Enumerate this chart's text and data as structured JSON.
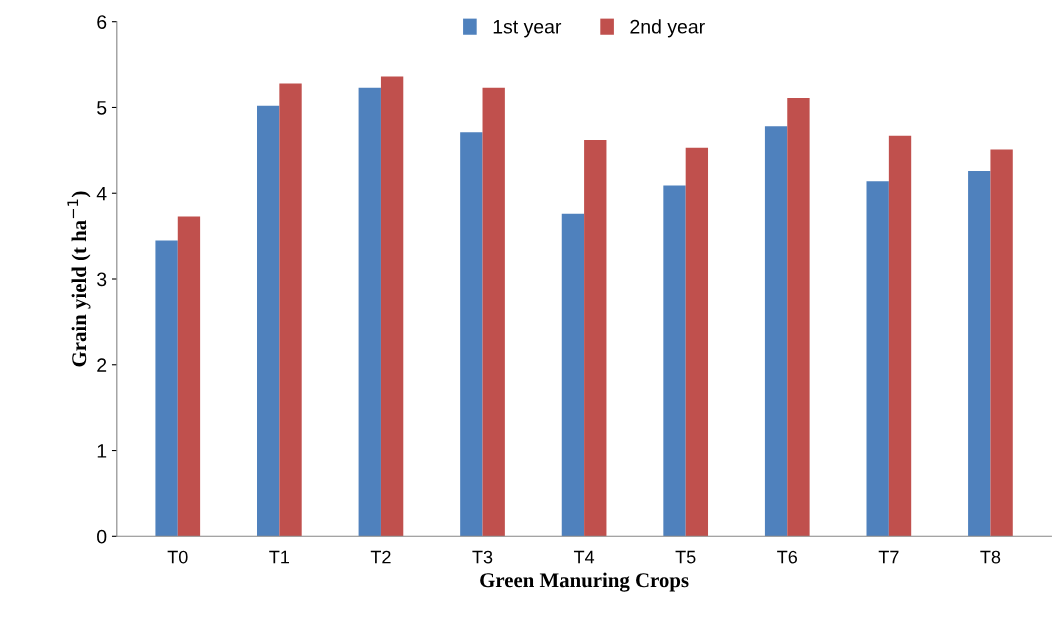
{
  "chart_data": {
    "type": "bar",
    "xlabel": "Green Manuring Crops",
    "ylabel": "Grain yield (t ha$^{−1}$)",
    "categories": [
      "T0",
      "T1",
      "T2",
      "T3",
      "T4",
      "T5",
      "T6",
      "T7",
      "T8"
    ],
    "series": [
      {
        "name": "1st year",
        "color": "#4f81bd",
        "values": [
          3.45,
          5.02,
          5.23,
          4.71,
          3.76,
          4.09,
          4.78,
          4.14,
          4.26
        ]
      },
      {
        "name": "2nd year",
        "color": "#c0504d",
        "values": [
          3.73,
          5.28,
          5.36,
          5.23,
          4.62,
          4.53,
          5.11,
          4.67,
          4.51
        ]
      }
    ],
    "ylim": [
      0,
      6
    ],
    "yticks": [
      0,
      1,
      2,
      3,
      4,
      5,
      6
    ],
    "grid": false,
    "legend": "top"
  }
}
